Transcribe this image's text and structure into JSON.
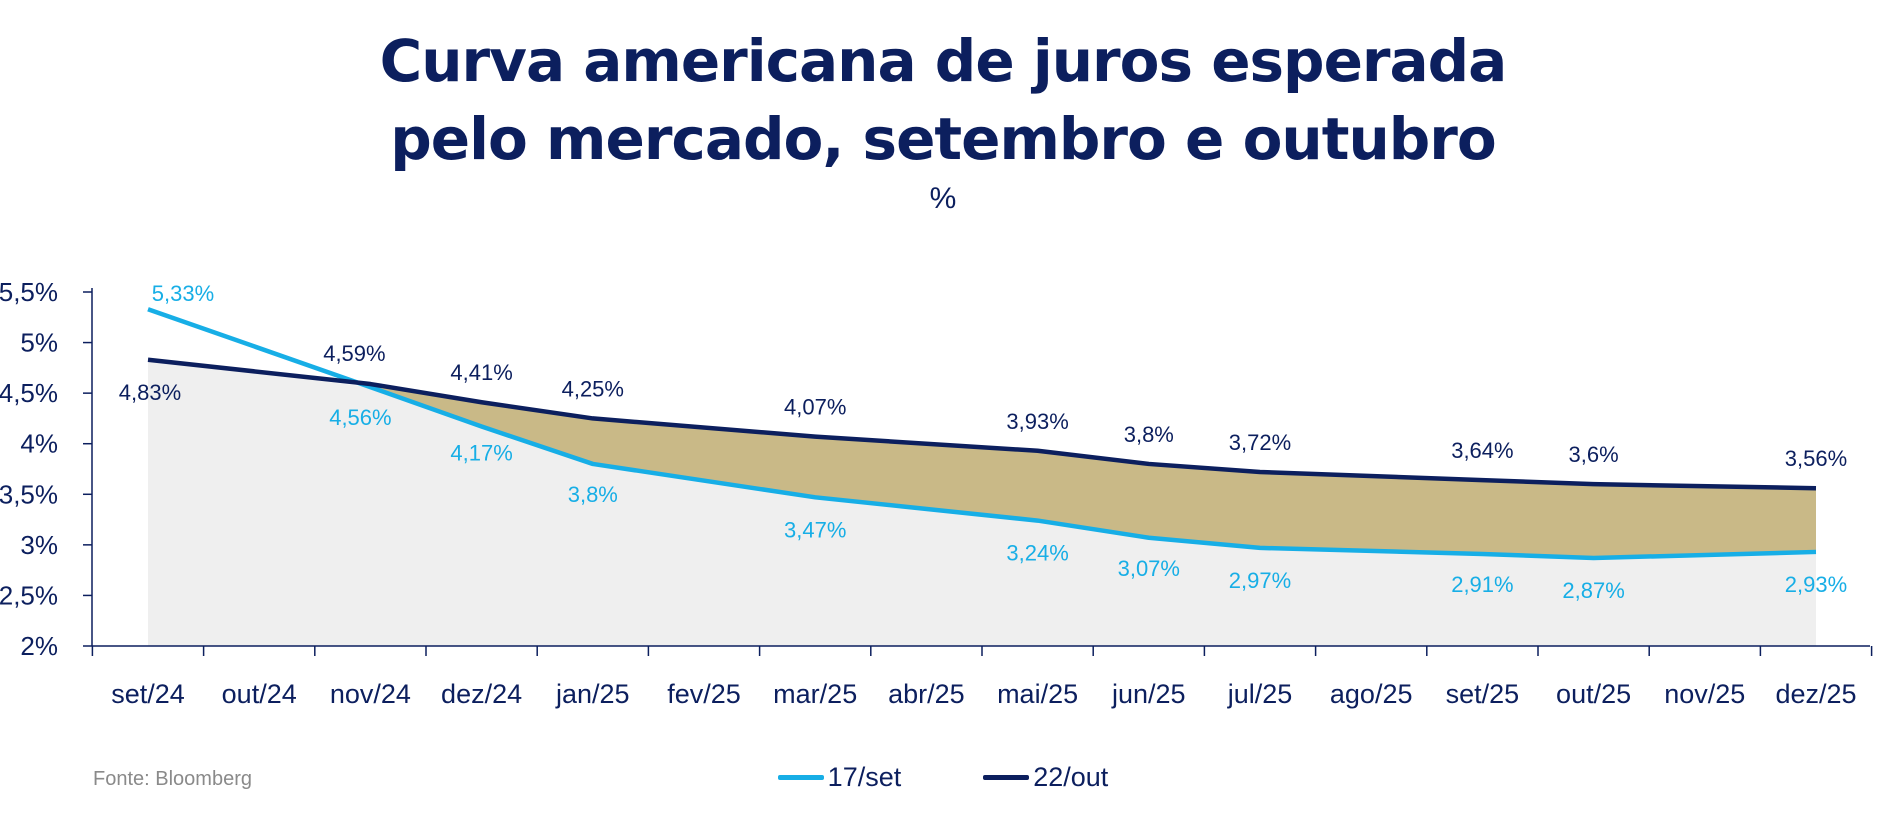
{
  "title_line1": "Curva americana de juros esperada",
  "title_line2": "pelo mercado, setembro e outubro",
  "unit": "%",
  "source": "Fonte: Bloomberg",
  "colors": {
    "series_sep": "#17aee6",
    "series_oct": "#0c1f5e",
    "fill_between": "#c9b987",
    "fill_below": "#efefef",
    "axis": "#0c1f5e"
  },
  "chart_data": {
    "type": "line",
    "title": "Curva americana de juros esperada pelo mercado, setembro e outubro",
    "subtitle": "%",
    "categories": [
      "set/24",
      "out/24",
      "nov/24",
      "dez/24",
      "jan/25",
      "fev/25",
      "mar/25",
      "abr/25",
      "mai/25",
      "jun/25",
      "jul/25",
      "ago/25",
      "set/25",
      "out/25",
      "nov/25",
      "dez/25"
    ],
    "y_ticks": [
      "2%",
      "2,5%",
      "3%",
      "3,5%",
      "4%",
      "4,5%",
      "5%",
      "5,5%"
    ],
    "ylim": [
      2,
      5.5
    ],
    "grid": false,
    "legend_position": "bottom-center",
    "series": [
      {
        "name": "17/set",
        "color": "#17aee6",
        "x": [
          "set/24",
          "nov/24",
          "dez/24",
          "jan/25",
          "mar/25",
          "mai/25",
          "jun/25",
          "jul/25",
          "set/25",
          "out/25",
          "dez/25"
        ],
        "values": [
          5.33,
          4.56,
          4.17,
          3.8,
          3.47,
          3.24,
          3.07,
          2.97,
          2.91,
          2.87,
          2.93
        ],
        "labels": [
          "5,33%",
          "4,56%",
          "4,17%",
          "3,8%",
          "3,47%",
          "3,24%",
          "3,07%",
          "2,97%",
          "2,91%",
          "2,87%",
          "2,93%"
        ]
      },
      {
        "name": "22/out",
        "color": "#0c1f5e",
        "x": [
          "set/24",
          "nov/24",
          "dez/24",
          "jan/25",
          "mar/25",
          "mai/25",
          "jun/25",
          "jul/25",
          "set/25",
          "out/25",
          "dez/25"
        ],
        "values": [
          4.83,
          4.59,
          4.41,
          4.25,
          4.07,
          3.93,
          3.8,
          3.72,
          3.64,
          3.6,
          3.56
        ],
        "labels": [
          "4,83%",
          "4,59%",
          "4,41%",
          "4,25%",
          "4,07%",
          "3,93%",
          "3,8%",
          "3,72%",
          "3,64%",
          "3,6%",
          "3,56%"
        ]
      }
    ]
  }
}
